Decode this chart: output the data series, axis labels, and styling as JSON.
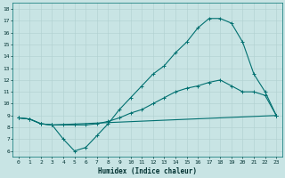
{
  "xlabel": "Humidex (Indice chaleur)",
  "bg_color": "#c8e4e4",
  "line_color": "#007070",
  "grid_color": "#b0d0d0",
  "ylim": [
    5.5,
    18.5
  ],
  "xlim": [
    -0.5,
    23.5
  ],
  "yticks": [
    6,
    7,
    8,
    9,
    10,
    11,
    12,
    13,
    14,
    15,
    16,
    17,
    18
  ],
  "xticks": [
    0,
    1,
    2,
    3,
    4,
    5,
    6,
    7,
    8,
    9,
    10,
    11,
    12,
    13,
    14,
    15,
    16,
    17,
    18,
    19,
    20,
    21,
    22,
    23
  ],
  "line1_x": [
    0,
    1,
    2,
    3,
    4,
    5,
    6,
    7,
    8,
    9,
    10,
    11,
    12,
    13,
    14,
    15,
    16,
    17,
    18,
    19,
    20,
    21,
    22,
    23
  ],
  "line1_y": [
    8.8,
    8.7,
    8.3,
    8.2,
    7.0,
    6.0,
    6.3,
    7.3,
    8.3,
    9.5,
    10.5,
    11.5,
    12.5,
    13.2,
    14.3,
    15.2,
    16.4,
    17.2,
    17.2,
    16.8,
    15.2,
    12.5,
    11.0,
    9.0
  ],
  "line2_x": [
    0,
    1,
    2,
    3,
    4,
    5,
    6,
    7,
    8,
    9,
    10,
    11,
    12,
    13,
    14,
    15,
    16,
    17,
    18,
    19,
    20,
    21,
    22,
    23
  ],
  "line2_y": [
    8.8,
    8.7,
    8.3,
    8.2,
    8.2,
    8.2,
    8.2,
    8.3,
    8.5,
    8.8,
    9.2,
    9.5,
    10.0,
    10.5,
    11.0,
    11.3,
    11.5,
    11.8,
    12.0,
    11.5,
    11.0,
    11.0,
    10.7,
    9.0
  ],
  "line3_x": [
    0,
    1,
    2,
    3,
    23
  ],
  "line3_y": [
    8.8,
    8.7,
    8.3,
    8.2,
    9.0
  ],
  "markersize": 2.0,
  "linewidth": 0.8
}
